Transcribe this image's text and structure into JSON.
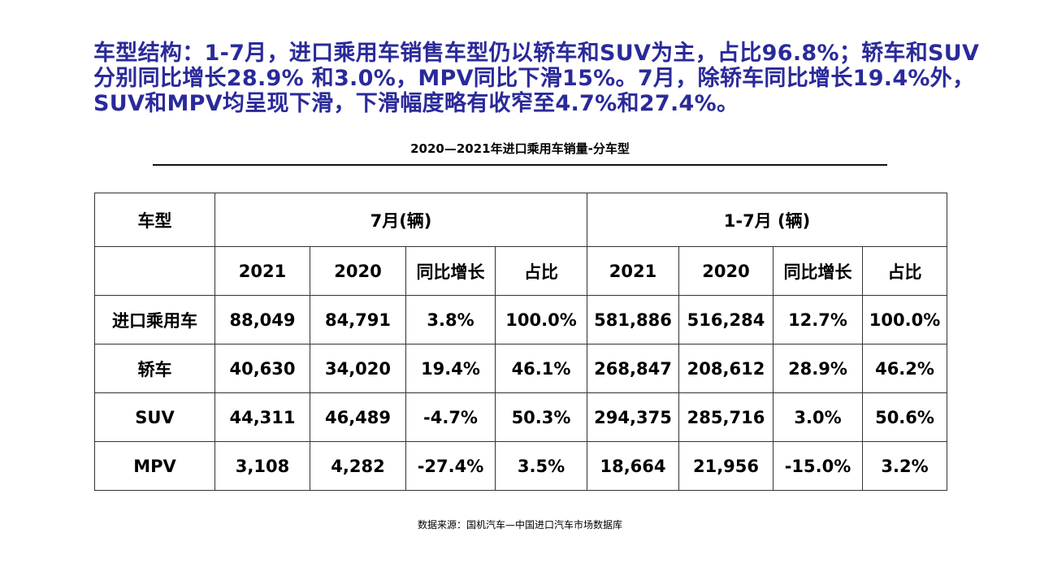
{
  "headline": "车型结构：1-7月，进口乘用车销售车型仍以轿车和SUV为主，占比96.8%；轿车和SUV分别同比增长28.9% 和3.0%，MPV同比下滑15%。7月，除轿车同比增长19.4%外，SUV和MPV均呈现下滑，下滑幅度略有收窄至4.7%和27.4%。",
  "table_title": "2020—2021年进口乘用车销量-分车型",
  "table": {
    "type_header": "车型",
    "group_july": "7月(辆)",
    "group_ytd": "1-7月 (辆)",
    "sub_headers": [
      "2021",
      "2020",
      "同比增长",
      "占比",
      "2021",
      "2020",
      "同比增长",
      "占比"
    ],
    "rows": [
      {
        "type": "进口乘用车",
        "values": [
          "88,049",
          "84,791",
          "3.8%",
          "100.0%",
          "581,886",
          "516,284",
          "12.7%",
          "100.0%"
        ]
      },
      {
        "type": "轿车",
        "values": [
          "40,630",
          "34,020",
          "19.4%",
          "46.1%",
          "268,847",
          "208,612",
          "28.9%",
          "46.2%"
        ]
      },
      {
        "type": "SUV",
        "values": [
          "44,311",
          "46,489",
          "-4.7%",
          "50.3%",
          "294,375",
          "285,716",
          "3.0%",
          "50.6%"
        ]
      },
      {
        "type": "MPV",
        "values": [
          "3,108",
          "4,282",
          "-27.4%",
          "3.5%",
          "18,664",
          "21,956",
          "-15.0%",
          "3.2%"
        ]
      }
    ]
  },
  "source": "数据来源：国机汽车—中国进口汽车市场数据库",
  "colors": {
    "headline": "#2a2a9a"
  }
}
